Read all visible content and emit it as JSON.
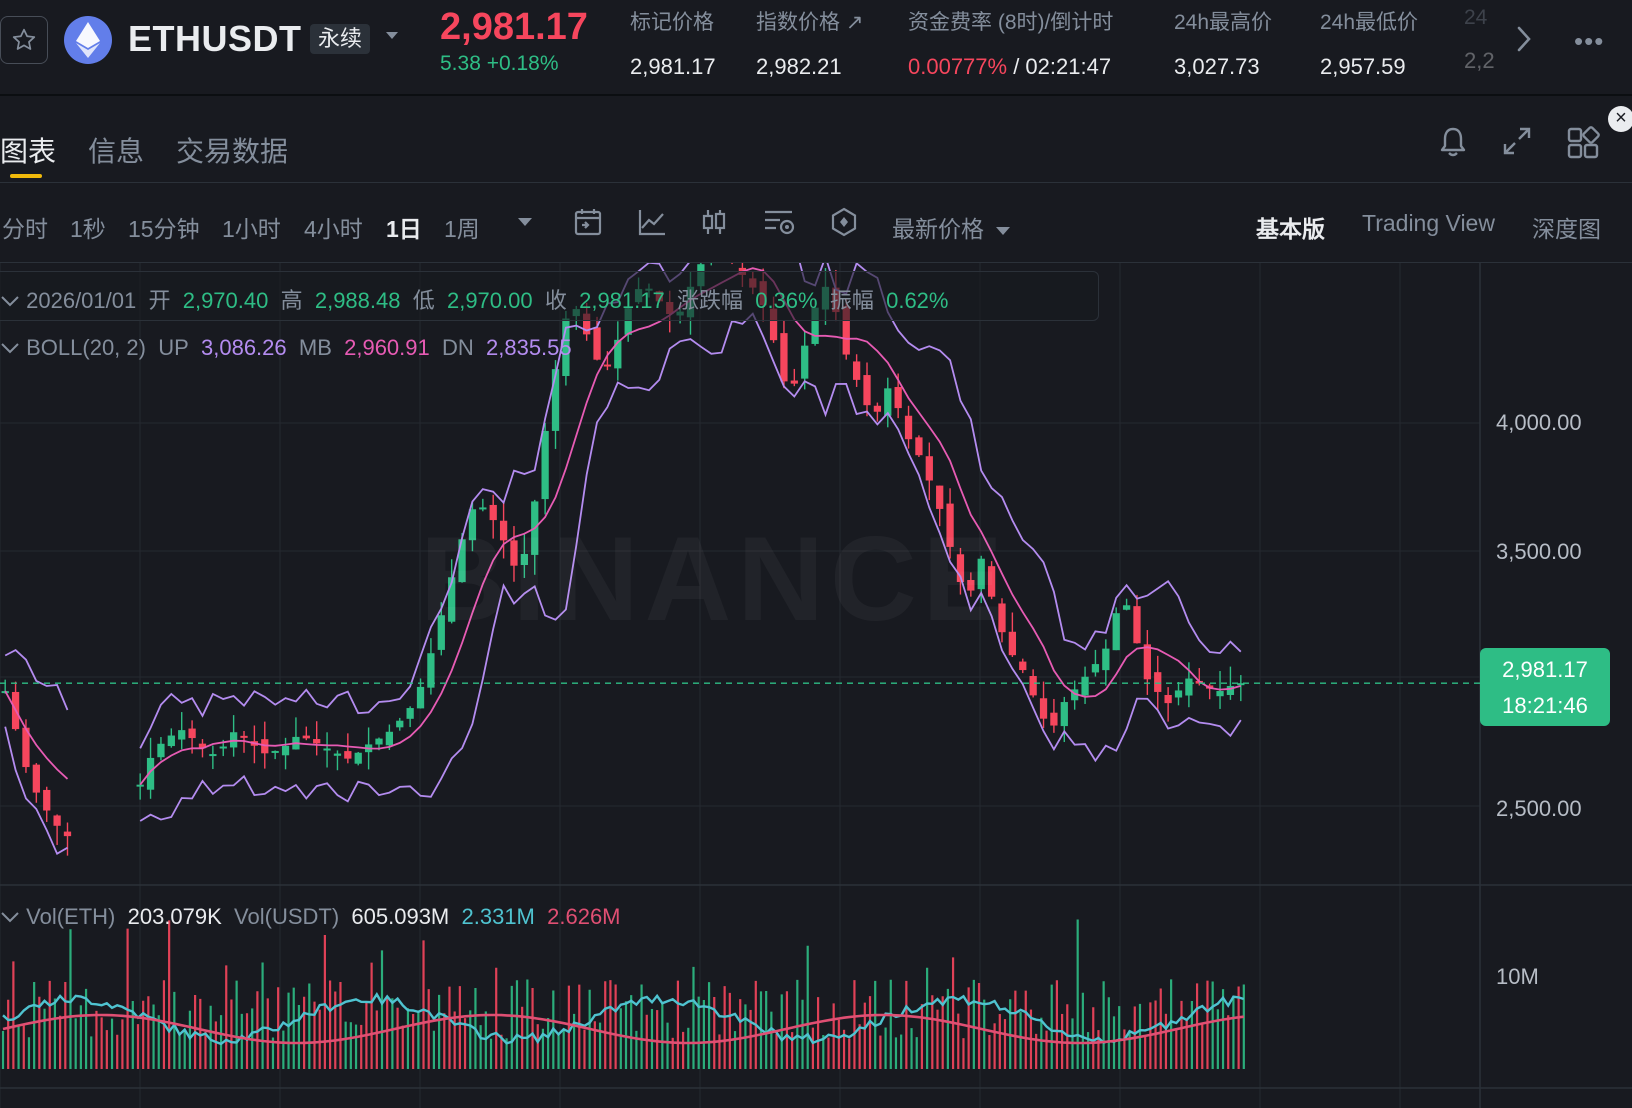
{
  "header": {
    "symbol": "ETHUSDT",
    "contract_type": "永续",
    "last_price": "2,981.17",
    "change": "5.38 +0.18%",
    "stats": [
      {
        "label": "标记价格",
        "value": "2,981.17"
      },
      {
        "label": "指数价格 ↗",
        "value": "2,982.21"
      },
      {
        "label": "资金费率 (8时)/倒计时",
        "value_rate": "0.00777%",
        "value_rest": " / 02:21:47"
      },
      {
        "label": "24h最高价",
        "value": "3,027.73"
      },
      {
        "label": "24h最低价",
        "value": "2,957.59"
      },
      {
        "label": "24",
        "value": "2,2"
      }
    ],
    "colors": {
      "up": "#2ebd85",
      "down": "#f6465d",
      "accent": "#f0b90b",
      "eth": "#627eea"
    }
  },
  "tabs": [
    "图表",
    "信息",
    "交易数据"
  ],
  "timeframes": [
    "分时",
    "1秒",
    "15分钟",
    "1小时",
    "4小时",
    "1日",
    "1周"
  ],
  "active_timeframe": "1日",
  "price_type": "最新价格",
  "views": [
    "基本版",
    "Trading View",
    "深度图"
  ],
  "ohlc_legend": {
    "date": "2026/01/01",
    "open_label": "开",
    "open": "2,970.40",
    "high_label": "高",
    "high": "2,988.48",
    "low_label": "低",
    "low": "2,970.00",
    "close_label": "收",
    "close": "2,981.17",
    "chg_label": "涨跌幅",
    "chg": "0.36%",
    "amp_label": "振幅",
    "amp": "0.62%"
  },
  "boll_legend": {
    "name": "BOLL(20, 2)",
    "up_label": "UP",
    "up": "3,086.26",
    "mb_label": "MB",
    "mb": "2,960.91",
    "dn_label": "DN",
    "dn": "2,835.55"
  },
  "vol_legend": {
    "eth_label": "Vol(ETH)",
    "eth": "203.079K",
    "usdt_label": "Vol(USDT)",
    "usdt": "605.093M",
    "ma1": "2.331M",
    "ma2": "2.626M"
  },
  "price_axis": [
    "4,000.00",
    "3,500.00",
    "2,500.00"
  ],
  "vol_axis": [
    "10M"
  ],
  "current_price_tag": {
    "price": "2,981.17",
    "countdown": "18:21:46"
  },
  "watermark": "BINANCE",
  "chart_data": {
    "type": "candlestick",
    "current_price": 2981.17,
    "close_series": [
      2950,
      2800,
      2650,
      2550,
      2480,
      2420,
      2380,
      null,
      null,
      null,
      null,
      null,
      2450,
      2600,
      2700,
      2750,
      2780,
      2800,
      2760,
      2720,
      2700,
      2740,
      2800,
      2760,
      2730,
      2700,
      2720,
      2740,
      2780,
      2760,
      2740,
      2720,
      2700,
      2680,
      2720,
      2750,
      2770,
      2800,
      2850,
      2900,
      3000,
      3150,
      3300,
      3450,
      3600,
      3700,
      3650,
      3600,
      3500,
      3400,
      3550,
      3800,
      4100,
      4300,
      4500,
      4400,
      4300,
      4200,
      4250,
      4400,
      4500,
      4550,
      4500,
      4450,
      4400,
      4480,
      4600,
      4650,
      4700,
      4650,
      4600,
      4550,
      4500,
      4400,
      4200,
      4100,
      4250,
      4400,
      4550,
      4500,
      4300,
      4200,
      4100,
      4000,
      4150,
      4100,
      3950,
      3900,
      3800,
      3700,
      3550,
      3400,
      3300,
      3500,
      3350,
      3200,
      3100,
      3050,
      2950,
      2850,
      2800,
      2900,
      2950,
      3000,
      3050,
      3100,
      3250,
      3300,
      3150,
      3000,
      2950,
      2900,
      2950,
      3000,
      2980,
      2960,
      2950,
      2970,
      2981
    ],
    "volume_note": "Vol(ETH) last 203.079K, MA lines 2.331M / 2.626M"
  }
}
